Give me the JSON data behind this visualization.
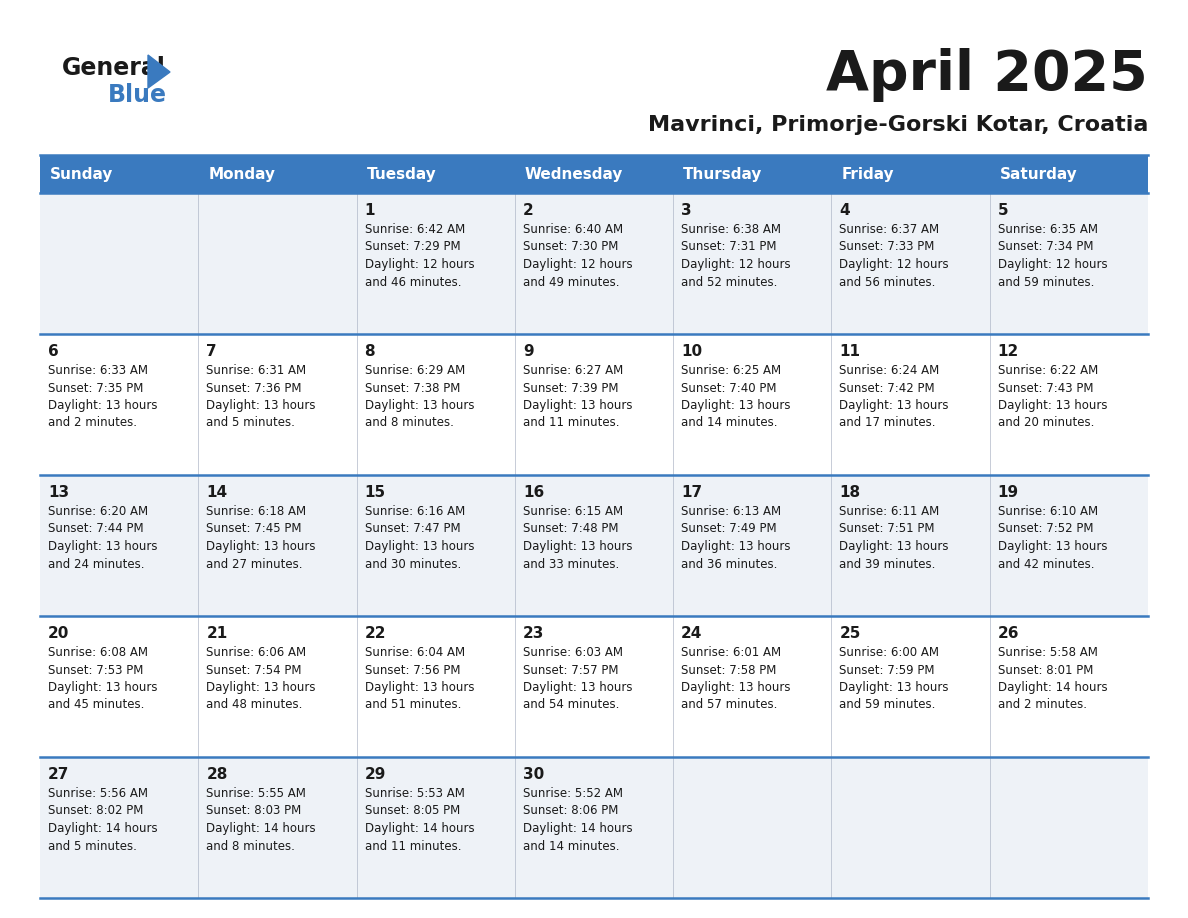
{
  "title": "April 2025",
  "subtitle": "Mavrinci, Primorje-Gorski Kotar, Croatia",
  "header_bg_color": "#3a7abf",
  "header_text_color": "#ffffff",
  "row_bg_even": "#eef2f7",
  "row_bg_odd": "#ffffff",
  "border_color": "#3a7abf",
  "cell_border_color": "#b0b8c8",
  "day_headers": [
    "Sunday",
    "Monday",
    "Tuesday",
    "Wednesday",
    "Thursday",
    "Friday",
    "Saturday"
  ],
  "weeks": [
    [
      {
        "day": null,
        "info": null
      },
      {
        "day": null,
        "info": null
      },
      {
        "day": 1,
        "info": "Sunrise: 6:42 AM\nSunset: 7:29 PM\nDaylight: 12 hours\nand 46 minutes."
      },
      {
        "day": 2,
        "info": "Sunrise: 6:40 AM\nSunset: 7:30 PM\nDaylight: 12 hours\nand 49 minutes."
      },
      {
        "day": 3,
        "info": "Sunrise: 6:38 AM\nSunset: 7:31 PM\nDaylight: 12 hours\nand 52 minutes."
      },
      {
        "day": 4,
        "info": "Sunrise: 6:37 AM\nSunset: 7:33 PM\nDaylight: 12 hours\nand 56 minutes."
      },
      {
        "day": 5,
        "info": "Sunrise: 6:35 AM\nSunset: 7:34 PM\nDaylight: 12 hours\nand 59 minutes."
      }
    ],
    [
      {
        "day": 6,
        "info": "Sunrise: 6:33 AM\nSunset: 7:35 PM\nDaylight: 13 hours\nand 2 minutes."
      },
      {
        "day": 7,
        "info": "Sunrise: 6:31 AM\nSunset: 7:36 PM\nDaylight: 13 hours\nand 5 minutes."
      },
      {
        "day": 8,
        "info": "Sunrise: 6:29 AM\nSunset: 7:38 PM\nDaylight: 13 hours\nand 8 minutes."
      },
      {
        "day": 9,
        "info": "Sunrise: 6:27 AM\nSunset: 7:39 PM\nDaylight: 13 hours\nand 11 minutes."
      },
      {
        "day": 10,
        "info": "Sunrise: 6:25 AM\nSunset: 7:40 PM\nDaylight: 13 hours\nand 14 minutes."
      },
      {
        "day": 11,
        "info": "Sunrise: 6:24 AM\nSunset: 7:42 PM\nDaylight: 13 hours\nand 17 minutes."
      },
      {
        "day": 12,
        "info": "Sunrise: 6:22 AM\nSunset: 7:43 PM\nDaylight: 13 hours\nand 20 minutes."
      }
    ],
    [
      {
        "day": 13,
        "info": "Sunrise: 6:20 AM\nSunset: 7:44 PM\nDaylight: 13 hours\nand 24 minutes."
      },
      {
        "day": 14,
        "info": "Sunrise: 6:18 AM\nSunset: 7:45 PM\nDaylight: 13 hours\nand 27 minutes."
      },
      {
        "day": 15,
        "info": "Sunrise: 6:16 AM\nSunset: 7:47 PM\nDaylight: 13 hours\nand 30 minutes."
      },
      {
        "day": 16,
        "info": "Sunrise: 6:15 AM\nSunset: 7:48 PM\nDaylight: 13 hours\nand 33 minutes."
      },
      {
        "day": 17,
        "info": "Sunrise: 6:13 AM\nSunset: 7:49 PM\nDaylight: 13 hours\nand 36 minutes."
      },
      {
        "day": 18,
        "info": "Sunrise: 6:11 AM\nSunset: 7:51 PM\nDaylight: 13 hours\nand 39 minutes."
      },
      {
        "day": 19,
        "info": "Sunrise: 6:10 AM\nSunset: 7:52 PM\nDaylight: 13 hours\nand 42 minutes."
      }
    ],
    [
      {
        "day": 20,
        "info": "Sunrise: 6:08 AM\nSunset: 7:53 PM\nDaylight: 13 hours\nand 45 minutes."
      },
      {
        "day": 21,
        "info": "Sunrise: 6:06 AM\nSunset: 7:54 PM\nDaylight: 13 hours\nand 48 minutes."
      },
      {
        "day": 22,
        "info": "Sunrise: 6:04 AM\nSunset: 7:56 PM\nDaylight: 13 hours\nand 51 minutes."
      },
      {
        "day": 23,
        "info": "Sunrise: 6:03 AM\nSunset: 7:57 PM\nDaylight: 13 hours\nand 54 minutes."
      },
      {
        "day": 24,
        "info": "Sunrise: 6:01 AM\nSunset: 7:58 PM\nDaylight: 13 hours\nand 57 minutes."
      },
      {
        "day": 25,
        "info": "Sunrise: 6:00 AM\nSunset: 7:59 PM\nDaylight: 13 hours\nand 59 minutes."
      },
      {
        "day": 26,
        "info": "Sunrise: 5:58 AM\nSunset: 8:01 PM\nDaylight: 14 hours\nand 2 minutes."
      }
    ],
    [
      {
        "day": 27,
        "info": "Sunrise: 5:56 AM\nSunset: 8:02 PM\nDaylight: 14 hours\nand 5 minutes."
      },
      {
        "day": 28,
        "info": "Sunrise: 5:55 AM\nSunset: 8:03 PM\nDaylight: 14 hours\nand 8 minutes."
      },
      {
        "day": 29,
        "info": "Sunrise: 5:53 AM\nSunset: 8:05 PM\nDaylight: 14 hours\nand 11 minutes."
      },
      {
        "day": 30,
        "info": "Sunrise: 5:52 AM\nSunset: 8:06 PM\nDaylight: 14 hours\nand 14 minutes."
      },
      {
        "day": null,
        "info": null
      },
      {
        "day": null,
        "info": null
      },
      {
        "day": null,
        "info": null
      }
    ]
  ]
}
